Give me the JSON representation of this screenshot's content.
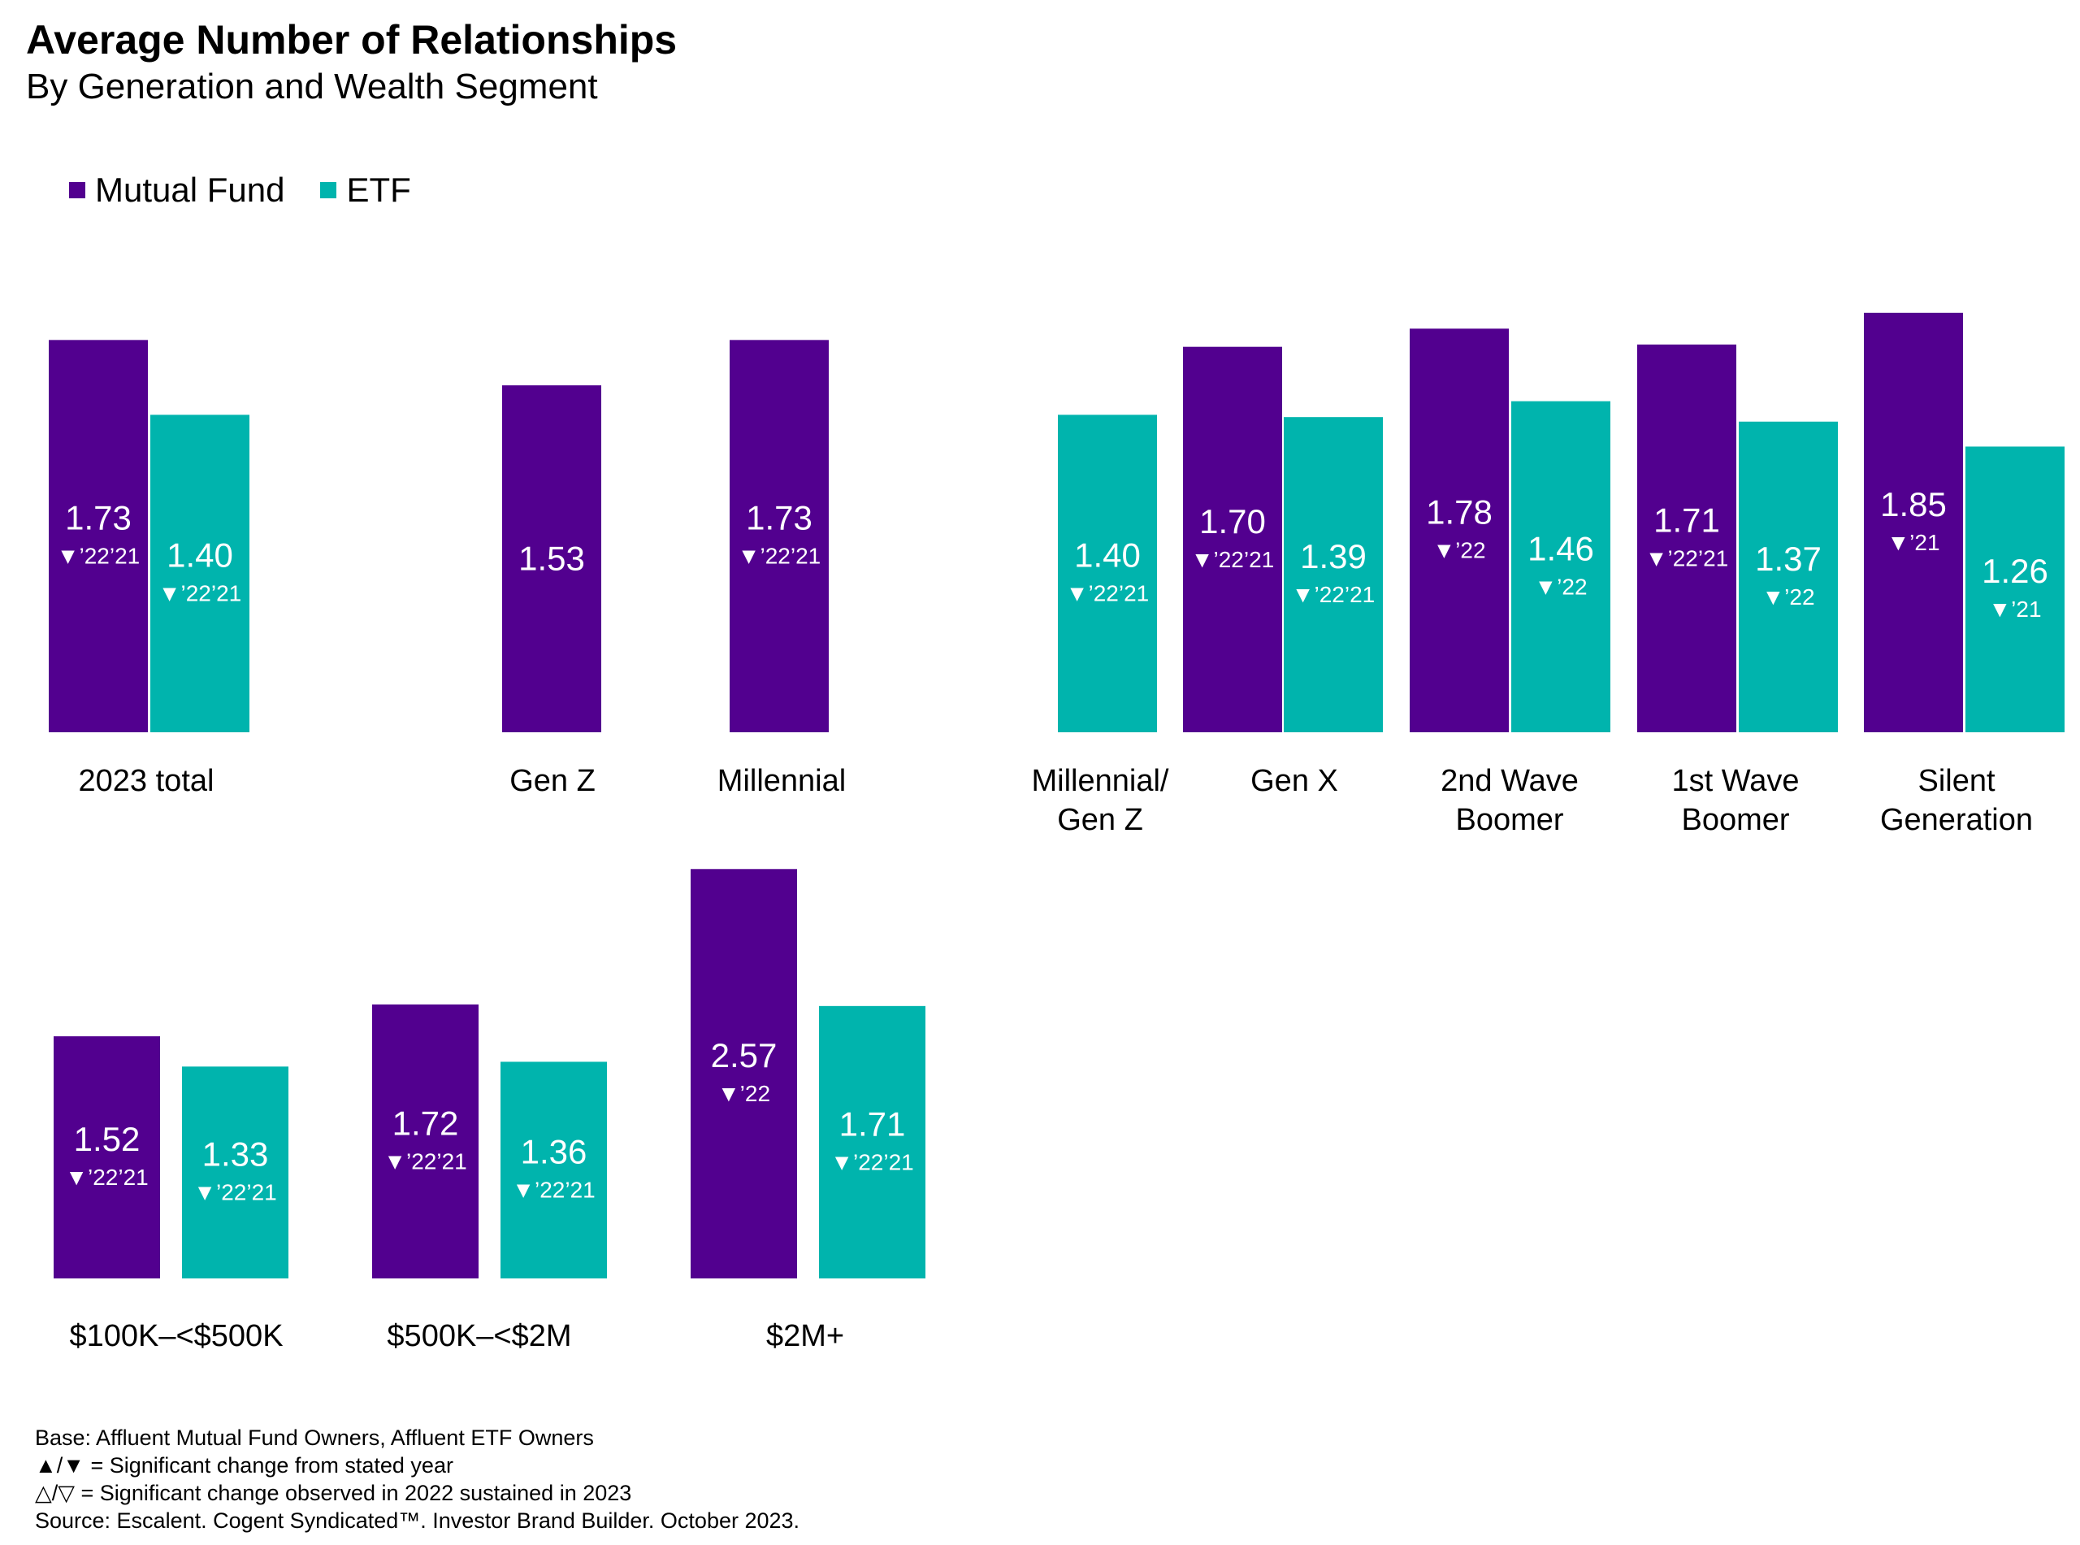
{
  "header": {
    "title": "Average Number of Relationships",
    "subtitle": "By Generation and Wealth Segment"
  },
  "legend": [
    {
      "label": "Mutual Fund",
      "color": "#52008f"
    },
    {
      "label": "ETF",
      "color": "#00b4ad"
    }
  ],
  "chart_data": {
    "type": "bar",
    "series": [
      {
        "name": "Mutual Fund",
        "color": "#52008f"
      },
      {
        "name": "ETF",
        "color": "#00b4ad"
      }
    ],
    "groups": [
      {
        "label": "2023 total",
        "row": 1,
        "bars": [
          {
            "series": "Mutual Fund",
            "value": 1.73,
            "note": "▼’22’21"
          },
          {
            "series": "ETF",
            "value": 1.4,
            "note": "▼’22’21"
          }
        ]
      },
      {
        "label": "Gen Z",
        "row": 1,
        "bars": [
          {
            "series": "Mutual Fund",
            "value": 1.53,
            "note": ""
          }
        ]
      },
      {
        "label": "Millennial",
        "row": 1,
        "bars": [
          {
            "series": "Mutual Fund",
            "value": 1.73,
            "note": "▼’22’21"
          }
        ]
      },
      {
        "label": "Millennial/ Gen Z",
        "row": 1,
        "bars": [
          {
            "series": "ETF",
            "value": 1.4,
            "note": "▼’22’21"
          }
        ]
      },
      {
        "label": "Gen X",
        "row": 1,
        "bars": [
          {
            "series": "Mutual Fund",
            "value": 1.7,
            "note": "▼’22’21"
          },
          {
            "series": "ETF",
            "value": 1.39,
            "note": "▼’22’21"
          }
        ]
      },
      {
        "label": "2nd Wave Boomer",
        "row": 1,
        "bars": [
          {
            "series": "Mutual Fund",
            "value": 1.78,
            "note": "▼’22"
          },
          {
            "series": "ETF",
            "value": 1.46,
            "note": "▼’22"
          }
        ]
      },
      {
        "label": "1st Wave Boomer",
        "row": 1,
        "bars": [
          {
            "series": "Mutual Fund",
            "value": 1.71,
            "note": "▼’22’21"
          },
          {
            "series": "ETF",
            "value": 1.37,
            "note": "▼’22"
          }
        ]
      },
      {
        "label": "Silent Generation",
        "row": 1,
        "bars": [
          {
            "series": "Mutual Fund",
            "value": 1.85,
            "note": "▼’21"
          },
          {
            "series": "ETF",
            "value": 1.26,
            "note": "▼’21"
          }
        ]
      },
      {
        "label": "$100K–<$500K",
        "row": 2,
        "bars": [
          {
            "series": "Mutual Fund",
            "value": 1.52,
            "note": "▼’22’21"
          },
          {
            "series": "ETF",
            "value": 1.33,
            "note": "▼’22’21"
          }
        ]
      },
      {
        "label": "$500K–<$2M",
        "row": 2,
        "bars": [
          {
            "series": "Mutual Fund",
            "value": 1.72,
            "note": "▼’22’21"
          },
          {
            "series": "ETF",
            "value": 1.36,
            "note": "▼’22’21"
          }
        ]
      },
      {
        "label": "$2M+",
        "row": 2,
        "bars": [
          {
            "series": "Mutual Fund",
            "value": 2.57,
            "note": "▼’22"
          },
          {
            "series": "ETF",
            "value": 1.71,
            "note": "▼’22’21"
          }
        ]
      }
    ],
    "grid": false,
    "legend_position": "top-left"
  },
  "footnotes": [
    "Base: Affluent Mutual Fund Owners, Affluent ETF Owners",
    "▲/▼ = Significant change from stated year",
    "△/▽ = Significant change observed in 2022 sustained in 2023",
    "Source: Escalent. Cogent Syndicated™. Investor Brand Builder. October 2023."
  ]
}
